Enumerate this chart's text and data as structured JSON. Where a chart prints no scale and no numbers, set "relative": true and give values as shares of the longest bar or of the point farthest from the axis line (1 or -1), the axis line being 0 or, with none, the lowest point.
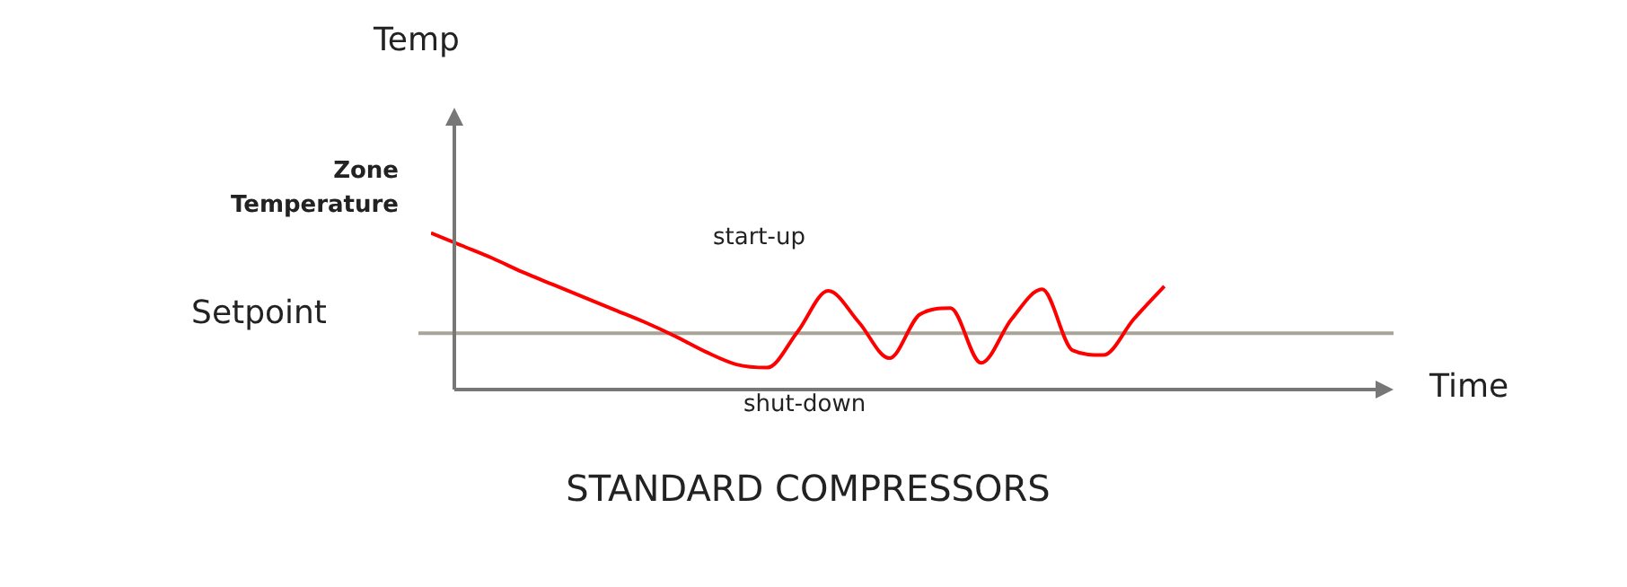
{
  "chart_data": {
    "type": "line",
    "relative": true,
    "title": "STANDARD COMPRESSORS",
    "categories": [
      null,
      null,
      null,
      null,
      null,
      null,
      null,
      null,
      null,
      null,
      null,
      null,
      null,
      null,
      null,
      null,
      null,
      null,
      null,
      null,
      null,
      null,
      null,
      null,
      null
    ],
    "series": [
      {
        "color": "#ff0000",
        "values": [
          1.0,
          0.92,
          0.84,
          0.75,
          0.67,
          0.59,
          0.51,
          0.43,
          0.34,
          0.24,
          0.16,
          0.14,
          0.37,
          0.63,
          0.43,
          0.2,
          0.48,
          0.52,
          0.17,
          0.45,
          0.64,
          0.25,
          0.22,
          0.45,
          0.66
        ]
      }
    ],
    "ref_lines": [
      {
        "axis": "y",
        "value": 0.36,
        "label": "Setpoint",
        "color": "#a9a498"
      }
    ],
    "annotations": [
      "Temp",
      "Time",
      "Zone\nTemperature",
      "start-up",
      "shut-down"
    ],
    "legend": false,
    "marker": "none",
    "line_style": "solid"
  }
}
